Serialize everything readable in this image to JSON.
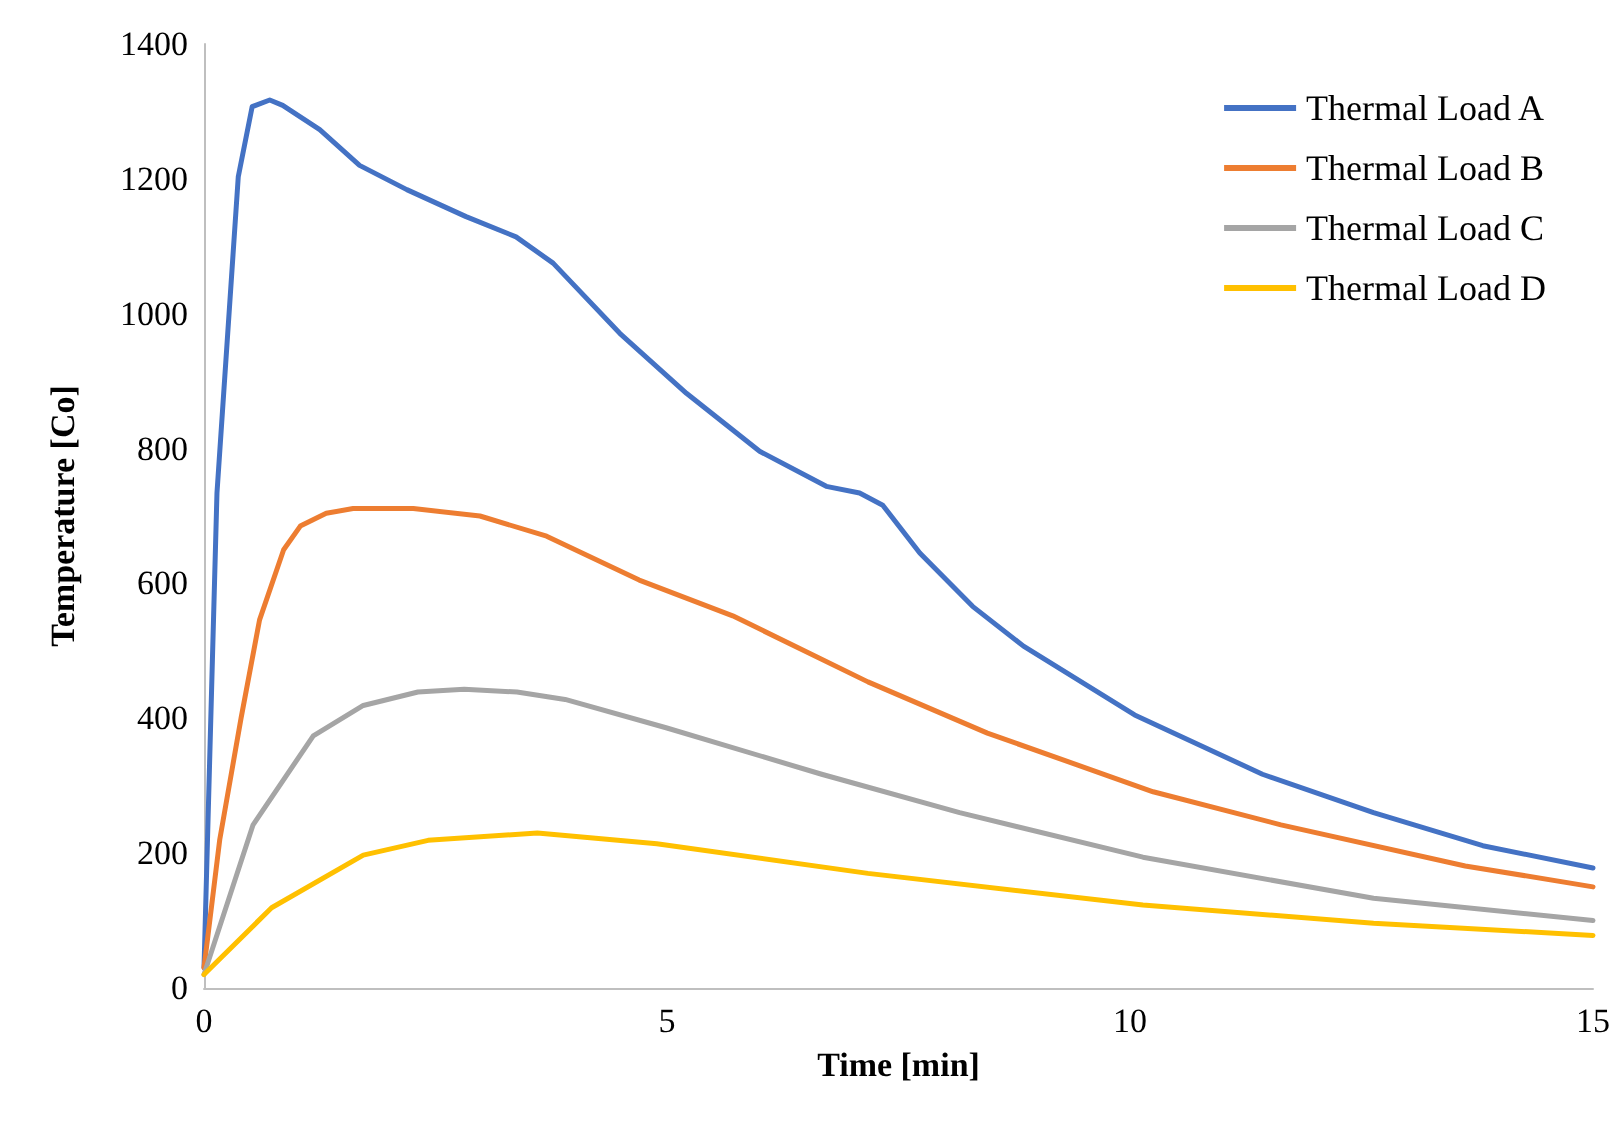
{
  "chart_data": {
    "type": "line",
    "xlabel": "Time [min]",
    "ylabel": "Temperature [Co]",
    "xlim": [
      0,
      15
    ],
    "xticks": [
      0,
      5,
      10,
      15
    ],
    "ylim": [
      0,
      1400
    ],
    "yticks": [
      0,
      200,
      400,
      600,
      800,
      1000,
      1200,
      1400
    ],
    "grid": false,
    "legend": "top right",
    "marker": "none",
    "line_style": "solid",
    "series": [
      {
        "name": "Thermal Load A",
        "color": "#4472c4",
        "x": [
          0,
          0.14,
          0.37,
          0.52,
          0.71,
          0.85,
          1.25,
          1.68,
          2.19,
          2.83,
          3.37,
          3.77,
          4.49,
          5.21,
          6.0,
          6.72,
          7.08,
          7.33,
          7.73,
          8.3,
          8.85,
          10.05,
          11.43,
          12.63,
          13.81,
          15
        ],
        "values": [
          30,
          734,
          1203,
          1307,
          1317,
          1309,
          1273,
          1220,
          1184,
          1144,
          1114,
          1075,
          971,
          882,
          796,
          744,
          734,
          716,
          645,
          566,
          507,
          405,
          317,
          260,
          211,
          178
        ]
      },
      {
        "name": "Thermal Load B",
        "color": "#ed7d31",
        "x": [
          0,
          0.17,
          0.4,
          0.6,
          0.86,
          1.04,
          1.32,
          1.61,
          2.26,
          2.98,
          3.7,
          4.7,
          5.71,
          7.17,
          8.46,
          10.25,
          11.63,
          13.62,
          15
        ],
        "values": [
          30,
          220,
          400,
          546,
          650,
          685,
          704,
          711,
          711,
          700,
          670,
          605,
          552,
          454,
          378,
          291,
          242,
          181,
          150
        ]
      },
      {
        "name": "Thermal Load C",
        "color": "#a5a5a5",
        "x": [
          0,
          0.53,
          1.18,
          1.72,
          2.31,
          2.81,
          3.38,
          3.9,
          4.99,
          6.67,
          8.16,
          10.14,
          12.63,
          15
        ],
        "values": [
          20,
          242,
          374,
          419,
          439,
          443,
          439,
          428,
          386,
          317,
          260,
          194,
          133,
          100
        ]
      },
      {
        "name": "Thermal Load D",
        "color": "#ffc000",
        "x": [
          0,
          0.73,
          1.72,
          2.42,
          3.6,
          4.89,
          7.17,
          10.14,
          12.63,
          15
        ],
        "values": [
          20,
          119,
          197,
          219,
          230,
          214,
          170,
          123,
          96,
          78
        ]
      }
    ]
  }
}
